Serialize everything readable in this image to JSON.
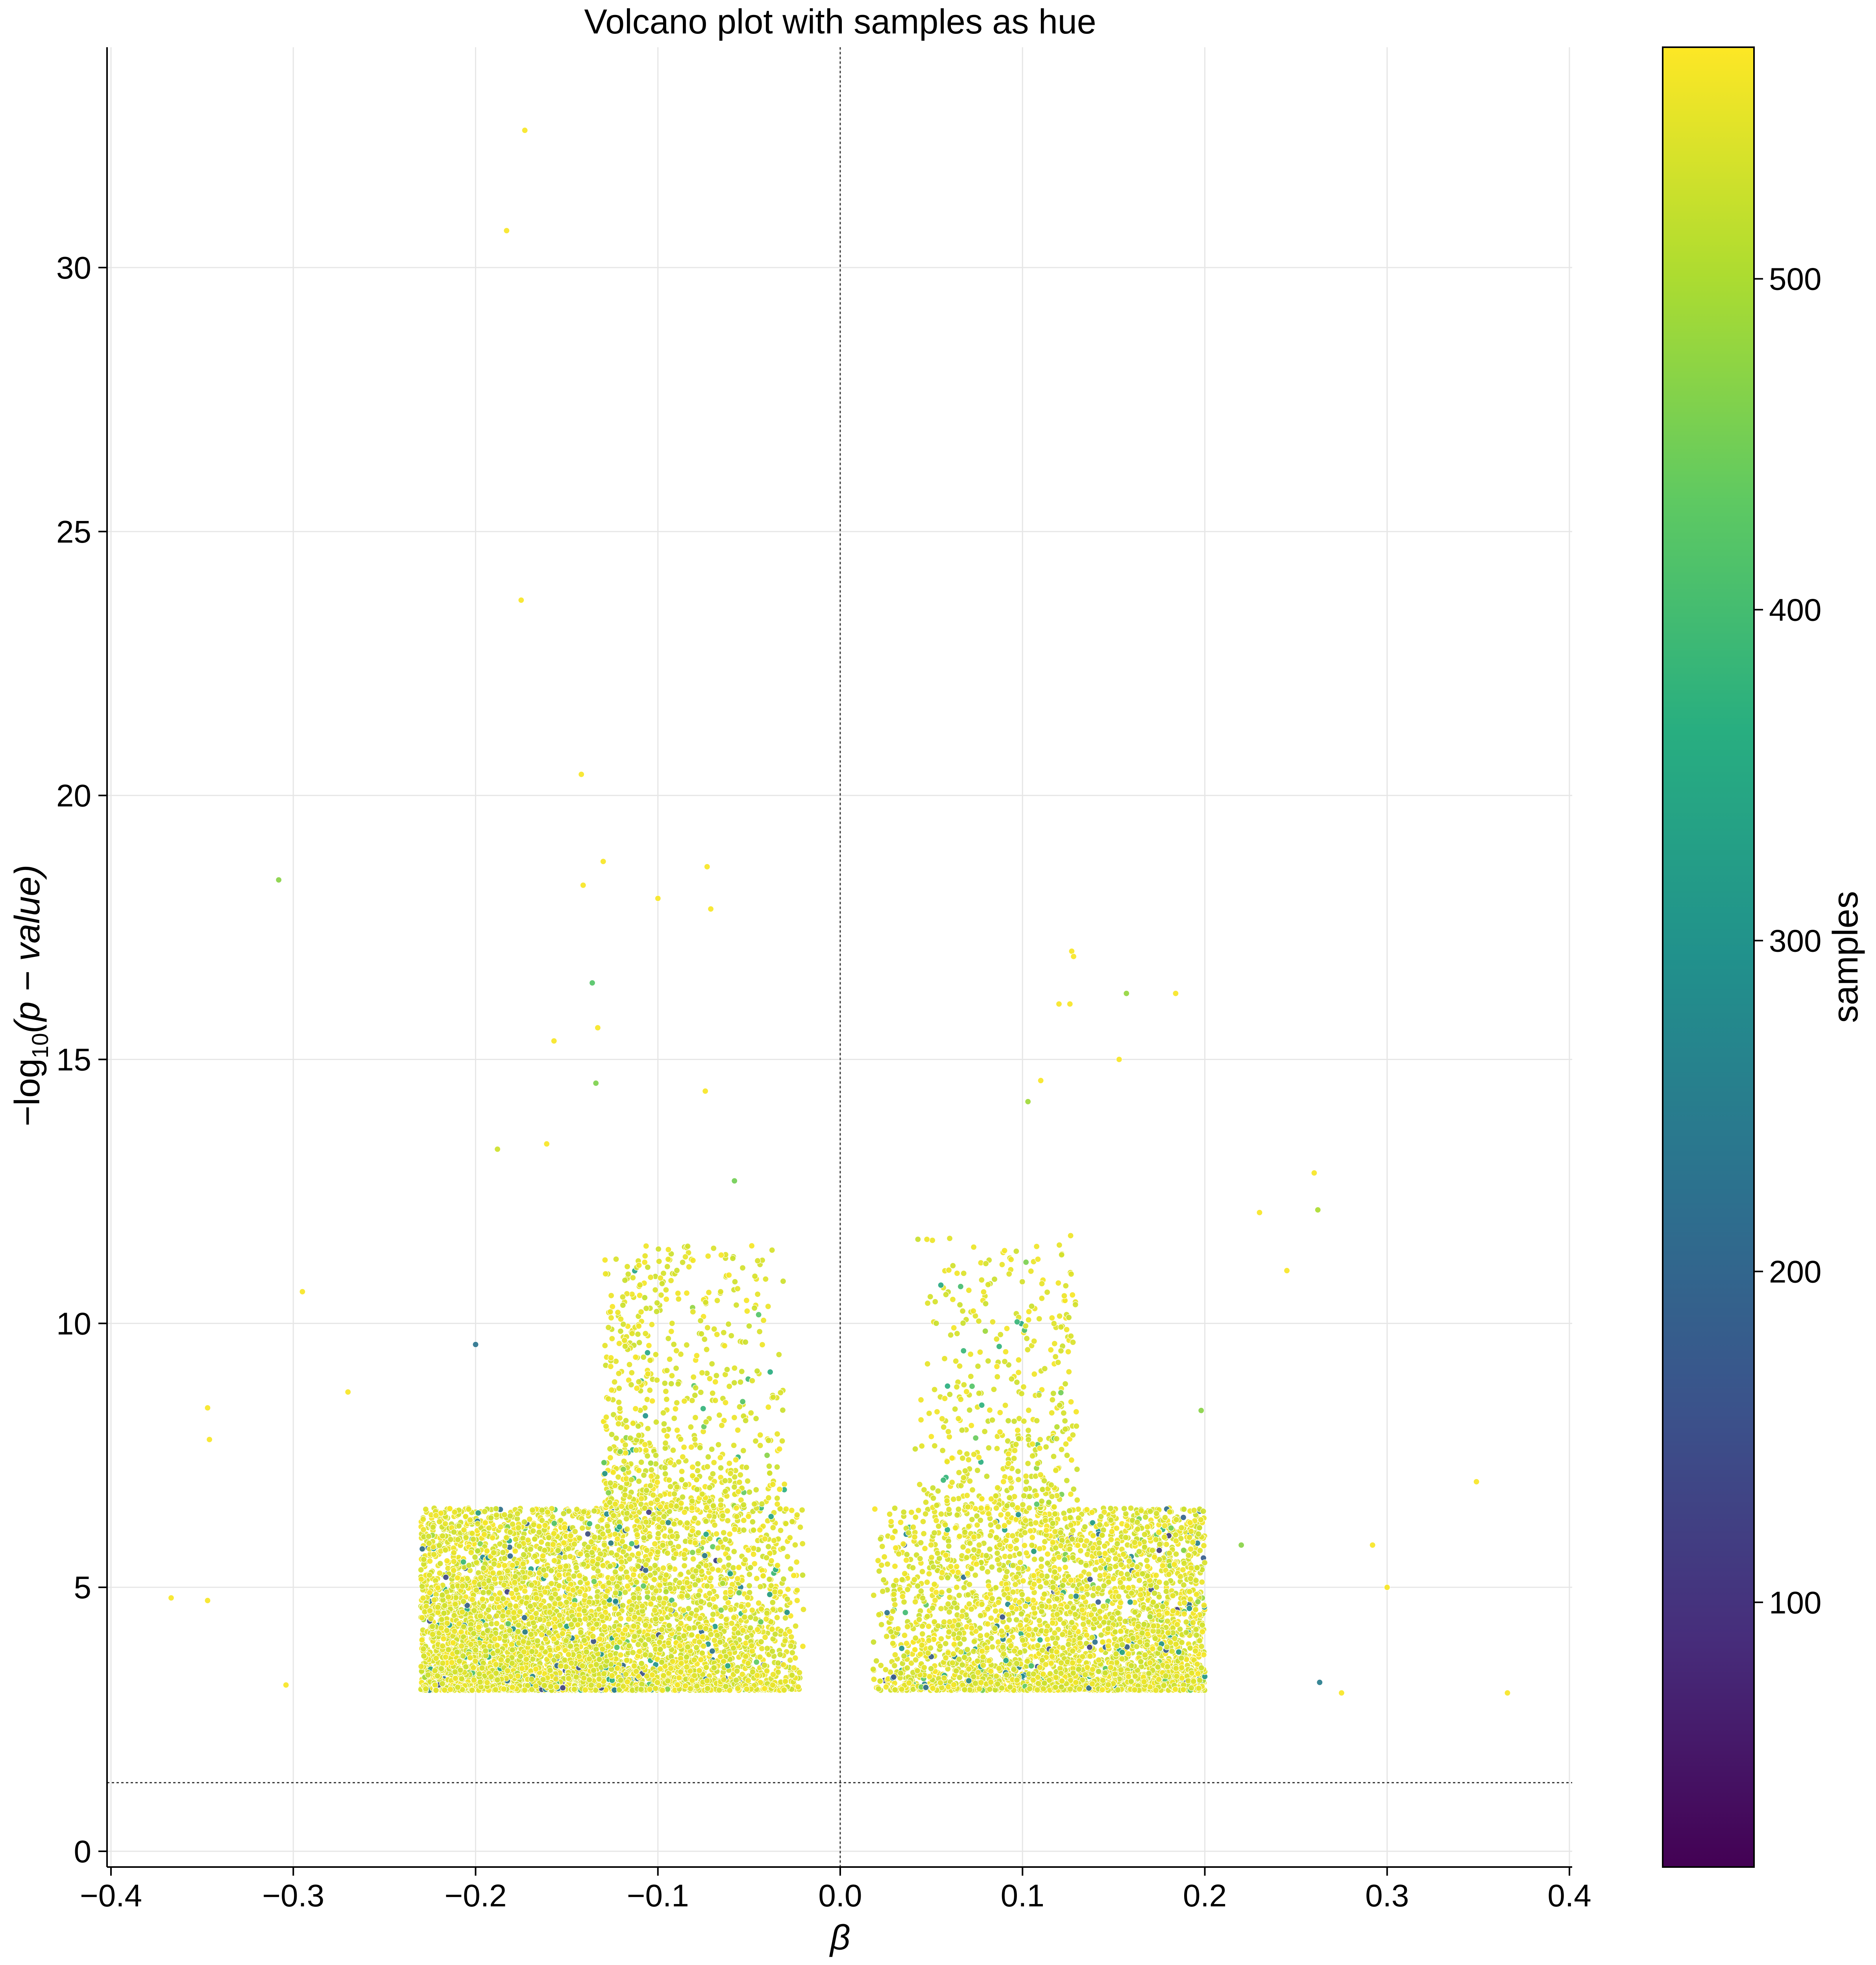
{
  "chart_data": {
    "type": "scatter",
    "title": "Volcano plot with samples as hue",
    "xlabel": "β",
    "ylabel_parts": {
      "prefix": "−log",
      "subscript": "10",
      "suffix": "(p − value)"
    },
    "xlim": [
      -0.4,
      0.4
    ],
    "ylim": [
      0,
      34
    ],
    "xticks": [
      -0.4,
      -0.3,
      -0.2,
      -0.1,
      0.0,
      0.1,
      0.2,
      0.3,
      0.4
    ],
    "xtick_labels": [
      "−0.4",
      "−0.3",
      "−0.2",
      "−0.1",
      "0.0",
      "0.1",
      "0.2",
      "0.3",
      "0.4"
    ],
    "yticks": [
      0,
      5,
      10,
      15,
      20,
      25,
      30
    ],
    "ytick_labels": [
      "0",
      "5",
      "10",
      "15",
      "20",
      "25",
      "30"
    ],
    "grid": true,
    "reference_lines": {
      "vertical_x": 0.0,
      "horizontal_y": 1.3
    },
    "colorbar": {
      "label": "samples",
      "colormap": "viridis",
      "range": [
        20,
        570
      ],
      "ticks": [
        100,
        200,
        300,
        400,
        500
      ],
      "tick_labels": [
        "100",
        "200",
        "300",
        "400",
        "500"
      ]
    },
    "notable_points": [
      {
        "x": -0.173,
        "y": 32.6,
        "samples": 565
      },
      {
        "x": -0.183,
        "y": 30.7,
        "samples": 565
      },
      {
        "x": -0.175,
        "y": 23.7,
        "samples": 565
      },
      {
        "x": -0.142,
        "y": 20.4,
        "samples": 565
      },
      {
        "x": -0.308,
        "y": 18.4,
        "samples": 470
      },
      {
        "x": -0.13,
        "y": 18.75,
        "samples": 565
      },
      {
        "x": -0.141,
        "y": 18.3,
        "samples": 565
      },
      {
        "x": -0.073,
        "y": 18.65,
        "samples": 565
      },
      {
        "x": -0.1,
        "y": 18.05,
        "samples": 565
      },
      {
        "x": -0.071,
        "y": 17.85,
        "samples": 565
      },
      {
        "x": -0.136,
        "y": 16.45,
        "samples": 420
      },
      {
        "x": -0.133,
        "y": 15.6,
        "samples": 565
      },
      {
        "x": -0.157,
        "y": 15.35,
        "samples": 565
      },
      {
        "x": -0.134,
        "y": 14.55,
        "samples": 460
      },
      {
        "x": -0.074,
        "y": 14.4,
        "samples": 565
      },
      {
        "x": -0.188,
        "y": 13.3,
        "samples": 530
      },
      {
        "x": -0.161,
        "y": 13.4,
        "samples": 565
      },
      {
        "x": -0.058,
        "y": 12.7,
        "samples": 450
      },
      {
        "x": -0.295,
        "y": 10.6,
        "samples": 565
      },
      {
        "x": -0.2,
        "y": 9.6,
        "samples": 230
      },
      {
        "x": -0.347,
        "y": 8.4,
        "samples": 565
      },
      {
        "x": -0.346,
        "y": 7.8,
        "samples": 565
      },
      {
        "x": -0.27,
        "y": 8.7,
        "samples": 565
      },
      {
        "x": -0.367,
        "y": 4.8,
        "samples": 565
      },
      {
        "x": -0.347,
        "y": 4.75,
        "samples": 565
      },
      {
        "x": -0.304,
        "y": 3.15,
        "samples": 565
      },
      {
        "x": 0.127,
        "y": 17.05,
        "samples": 565
      },
      {
        "x": 0.128,
        "y": 16.95,
        "samples": 565
      },
      {
        "x": 0.12,
        "y": 16.05,
        "samples": 565
      },
      {
        "x": 0.126,
        "y": 16.05,
        "samples": 565
      },
      {
        "x": 0.157,
        "y": 16.25,
        "samples": 480
      },
      {
        "x": 0.184,
        "y": 16.25,
        "samples": 565
      },
      {
        "x": 0.153,
        "y": 15.0,
        "samples": 565
      },
      {
        "x": 0.11,
        "y": 14.6,
        "samples": 565
      },
      {
        "x": 0.103,
        "y": 14.2,
        "samples": 490
      },
      {
        "x": 0.26,
        "y": 12.85,
        "samples": 565
      },
      {
        "x": 0.262,
        "y": 12.15,
        "samples": 500
      },
      {
        "x": 0.23,
        "y": 12.1,
        "samples": 565
      },
      {
        "x": 0.245,
        "y": 11.0,
        "samples": 565
      },
      {
        "x": 0.349,
        "y": 7.0,
        "samples": 565
      },
      {
        "x": 0.292,
        "y": 5.8,
        "samples": 565
      },
      {
        "x": 0.3,
        "y": 5.0,
        "samples": 565
      },
      {
        "x": 0.22,
        "y": 5.8,
        "samples": 470
      },
      {
        "x": 0.263,
        "y": 3.2,
        "samples": 250
      },
      {
        "x": 0.275,
        "y": 3.0,
        "samples": 565
      },
      {
        "x": 0.366,
        "y": 3.0,
        "samples": 565
      },
      {
        "x": 0.175,
        "y": 5.7,
        "samples": 120
      },
      {
        "x": 0.198,
        "y": 8.35,
        "samples": 470
      }
    ],
    "dense_clusters": [
      {
        "x_range": [
          -0.23,
          -0.02
        ],
        "y_range": [
          3.05,
          6.5
        ],
        "approx_count": 5200,
        "typical_samples": 565,
        "note_samples_min": 120
      },
      {
        "x_range": [
          -0.13,
          -0.03
        ],
        "y_range": [
          6.5,
          11.5
        ],
        "approx_count": 700,
        "typical_samples": 565,
        "note_samples_min": 300
      },
      {
        "x_range": [
          0.018,
          0.2
        ],
        "y_range": [
          3.05,
          6.5
        ],
        "approx_count": 3400,
        "typical_samples": 565,
        "note_samples_min": 120
      },
      {
        "x_range": [
          0.04,
          0.13
        ],
        "y_range": [
          6.5,
          11.7
        ],
        "approx_count": 420,
        "typical_samples": 565,
        "note_samples_min": 350
      }
    ]
  }
}
